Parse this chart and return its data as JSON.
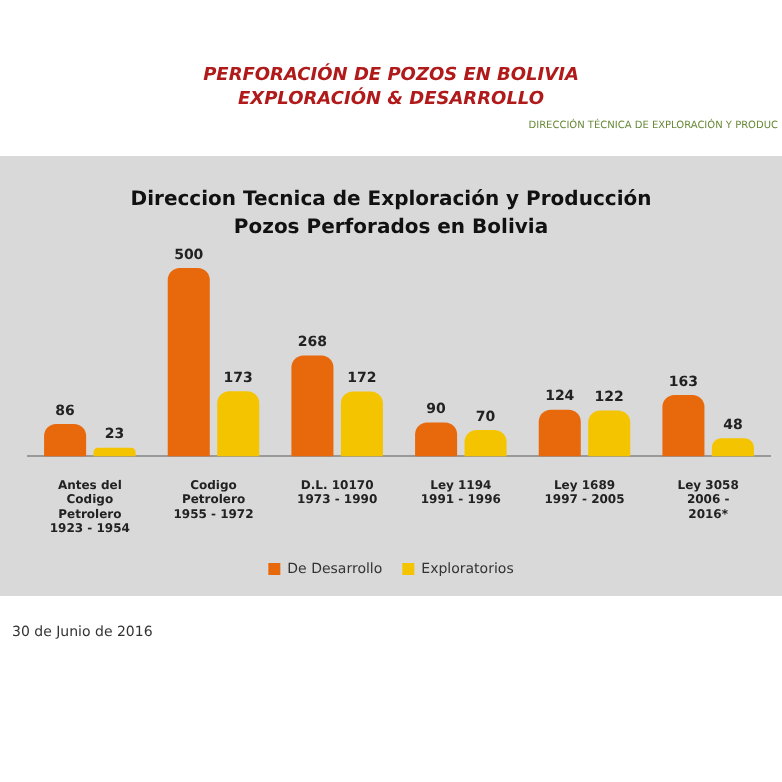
{
  "chart_data": {
    "type": "bar",
    "title": "Direccion Tecnica de Exploración y Producción",
    "subtitle": "Pozos Perforados en Bolivia",
    "categories": [
      "Antes del Codigo Petrolero 1923 - 1954",
      "Codigo Petrolero 1955 - 1972",
      "D.L. 10170 1973 - 1990",
      "Ley 1194 1991 - 1996",
      "Ley 1689 1997 - 2005",
      "Ley 3058 2006 - 2016*"
    ],
    "series": [
      {
        "name": "De Desarrollo",
        "color": "#e8680c",
        "values": [
          86,
          500,
          268,
          90,
          124,
          163
        ]
      },
      {
        "name": "Exploratorios",
        "color": "#f5c400",
        "values": [
          23,
          173,
          172,
          70,
          122,
          48
        ]
      }
    ],
    "data_labels": true,
    "legend": "bottom",
    "grid": false,
    "relative": false,
    "annotations": [
      "PERFORACIÓN DE POZOS EN BOLIVIA",
      "EXPLORACIÓN & DESARROLLO",
      "DIRECCIÓN TÉCNICA DE EXPLORACIÓN Y PRODUC",
      "30 de Junio de 2016"
    ]
  }
}
